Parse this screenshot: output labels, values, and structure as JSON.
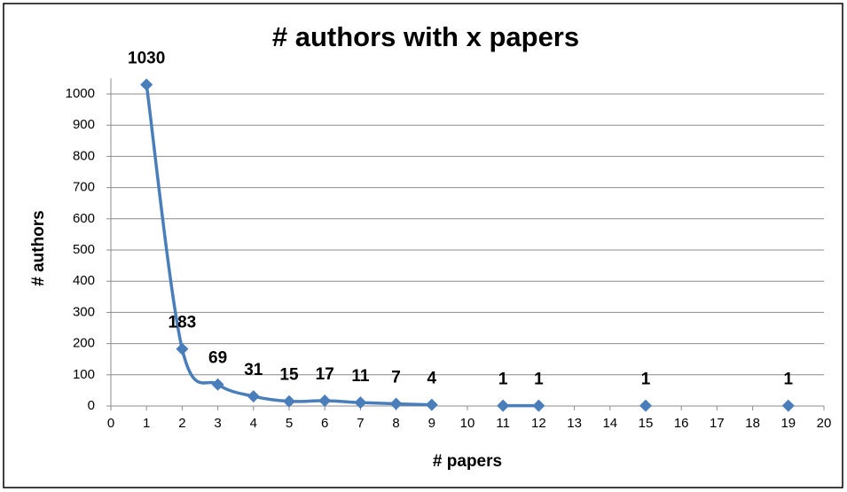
{
  "chart_data": {
    "type": "line",
    "title": "# authors with x papers",
    "x_label": "# papers",
    "y_label": "# authors",
    "x": [
      1,
      2,
      3,
      4,
      5,
      6,
      7,
      8,
      9,
      10,
      11,
      12,
      13,
      14,
      15,
      16,
      17,
      18,
      19
    ],
    "series": [
      {
        "name": "# authors",
        "color": "#4a7ebb",
        "values": [
          1030,
          183,
          69,
          31,
          15,
          17,
          11,
          7,
          4,
          null,
          1,
          1,
          null,
          null,
          1,
          null,
          null,
          null,
          1
        ]
      }
    ],
    "xlim": [
      0,
      20
    ],
    "xticks": [
      0,
      1,
      2,
      3,
      4,
      5,
      6,
      7,
      8,
      9,
      10,
      11,
      12,
      13,
      14,
      15,
      16,
      17,
      18,
      19,
      20
    ],
    "ylim": [
      0,
      1050
    ],
    "yticks": [
      0,
      100,
      200,
      300,
      400,
      500,
      600,
      700,
      800,
      900,
      1000
    ],
    "grid": true,
    "smooth": true
  }
}
